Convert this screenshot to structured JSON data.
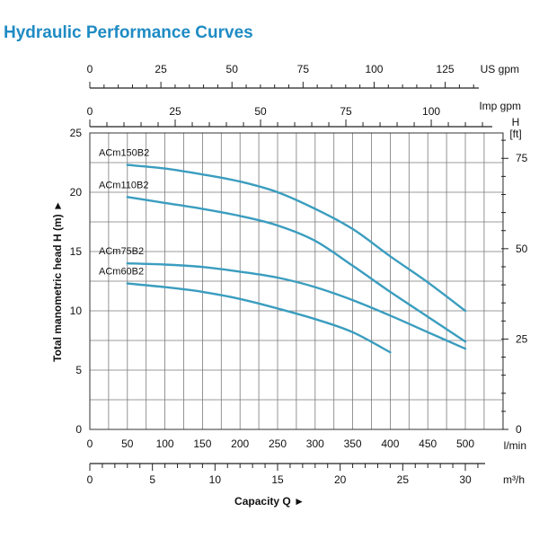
{
  "title": "Hydraulic Performance Curves",
  "chart_data": {
    "type": "line",
    "title": "Hydraulic Performance Curves",
    "xlabel": "Capacity Q ►",
    "ylabel": "Total manometric head H (m) ►",
    "x_unit": "l/min",
    "y_unit": "m",
    "xlim": [
      0,
      500
    ],
    "ylim": [
      0,
      25
    ],
    "x_ticks": [
      0,
      50,
      100,
      150,
      200,
      250,
      300,
      350,
      400,
      450,
      500
    ],
    "y_ticks": [
      0,
      5,
      10,
      15,
      20,
      25
    ],
    "grid": true,
    "line_color": "#3a9dbf",
    "secondary_axes": {
      "us_gpm": {
        "label": "US gpm",
        "ticks": [
          0,
          25,
          50,
          75,
          100,
          125
        ]
      },
      "imp_gpm": {
        "label": "Imp gpm",
        "ticks": [
          0,
          25,
          50,
          75,
          100
        ]
      },
      "m3h": {
        "label": "m³/h",
        "ticks": [
          0,
          5,
          10,
          15,
          20,
          25,
          30
        ]
      },
      "head_ft": {
        "label": "H [ft]",
        "ticks": [
          0,
          25,
          50,
          75
        ]
      }
    },
    "series": [
      {
        "name": "ACm150B2",
        "points": [
          [
            50,
            22.3
          ],
          [
            100,
            22.0
          ],
          [
            150,
            21.5
          ],
          [
            200,
            20.9
          ],
          [
            250,
            20.0
          ],
          [
            300,
            18.6
          ],
          [
            350,
            16.9
          ],
          [
            400,
            14.6
          ],
          [
            450,
            12.4
          ],
          [
            500,
            10.0
          ]
        ]
      },
      {
        "name": "ACm110B2",
        "points": [
          [
            50,
            19.6
          ],
          [
            100,
            19.1
          ],
          [
            150,
            18.6
          ],
          [
            200,
            18.0
          ],
          [
            250,
            17.2
          ],
          [
            300,
            15.9
          ],
          [
            350,
            13.8
          ],
          [
            400,
            11.6
          ],
          [
            450,
            9.5
          ],
          [
            500,
            7.4
          ]
        ]
      },
      {
        "name": "ACm75B2",
        "points": [
          [
            50,
            14.0
          ],
          [
            100,
            13.9
          ],
          [
            150,
            13.7
          ],
          [
            200,
            13.3
          ],
          [
            250,
            12.8
          ],
          [
            300,
            12.0
          ],
          [
            350,
            10.9
          ],
          [
            400,
            9.6
          ],
          [
            450,
            8.2
          ],
          [
            500,
            6.8
          ]
        ]
      },
      {
        "name": "ACm60B2",
        "points": [
          [
            50,
            12.3
          ],
          [
            100,
            12.0
          ],
          [
            150,
            11.6
          ],
          [
            200,
            11.0
          ],
          [
            250,
            10.2
          ],
          [
            300,
            9.3
          ],
          [
            350,
            8.2
          ],
          [
            400,
            6.5
          ]
        ]
      }
    ]
  }
}
